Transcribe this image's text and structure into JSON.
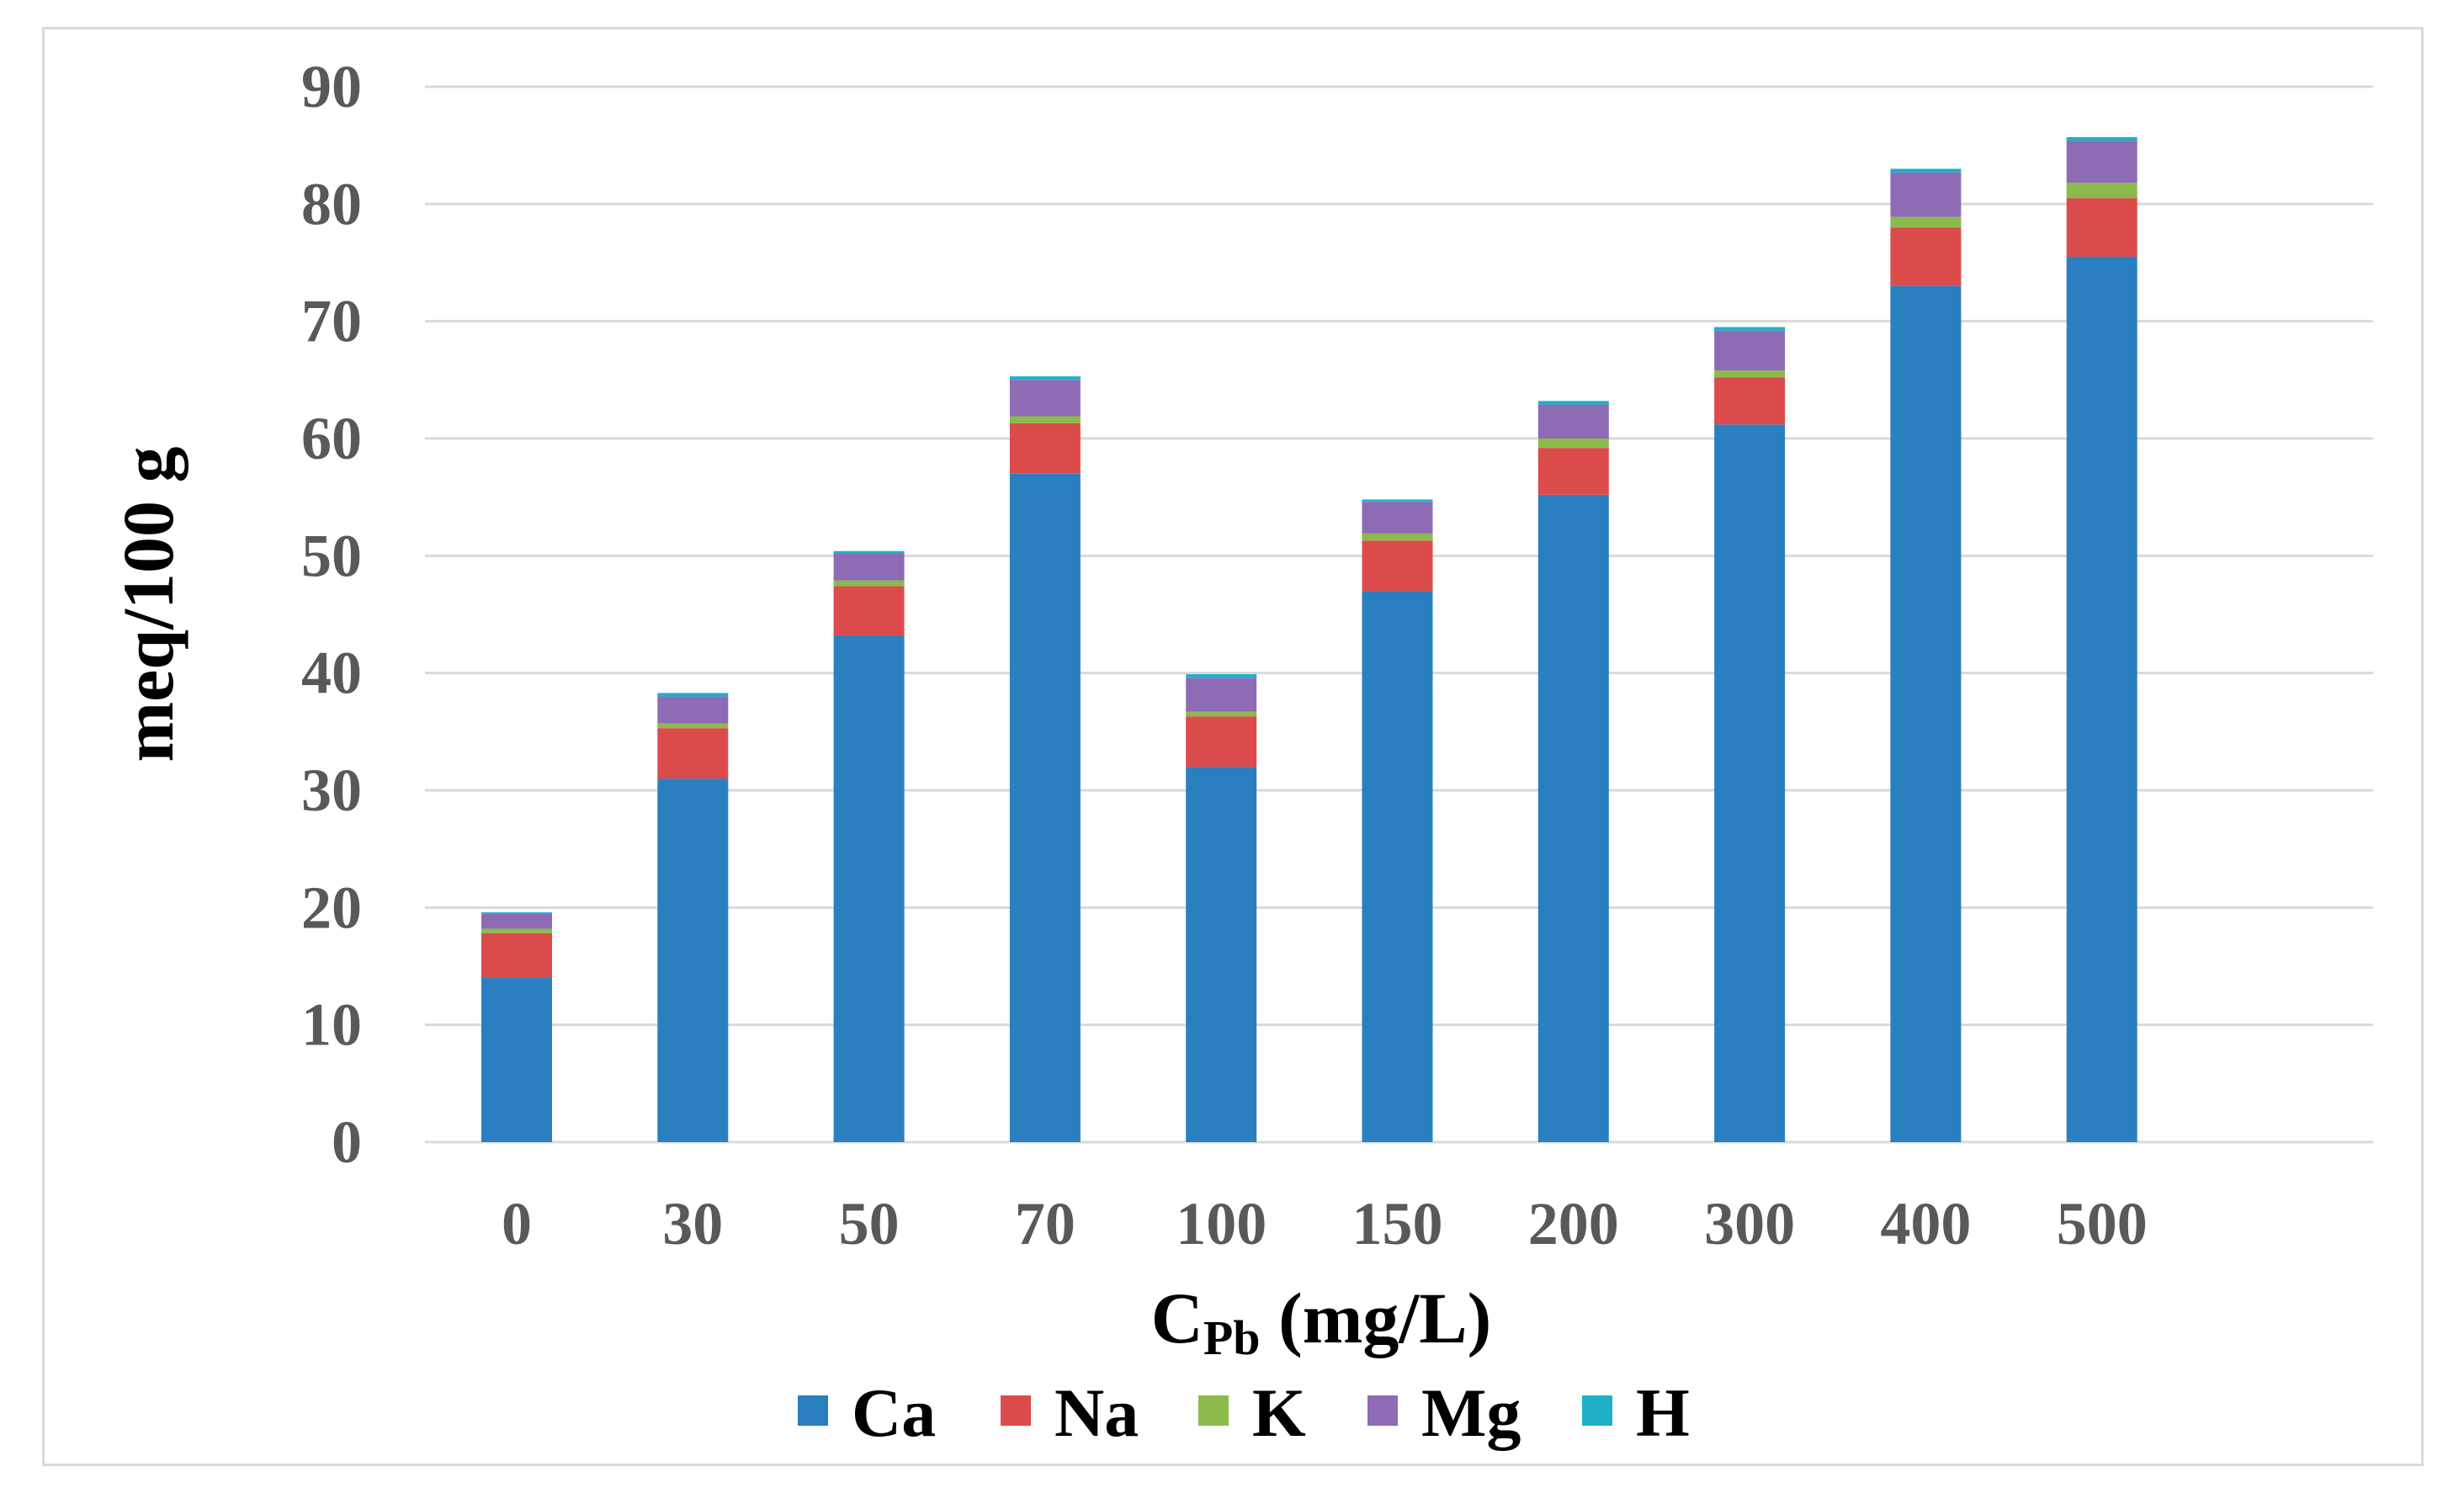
{
  "chart_data": {
    "type": "bar",
    "stacked": true,
    "title": "",
    "xlabel_main": "C",
    "xlabel_sub": "Pb",
    "xlabel_tail": " (mg/L)",
    "ylabel": "meq/100 g",
    "ylim": [
      0,
      90
    ],
    "yticks": [
      0,
      10,
      20,
      30,
      40,
      50,
      60,
      70,
      80,
      90
    ],
    "grid": true,
    "legend_position": "bottom",
    "categories": [
      "0",
      "30",
      "50",
      "70",
      "100",
      "150",
      "200",
      "300",
      "400",
      "500"
    ],
    "series": [
      {
        "name": "Ca",
        "color": "#2a7fc1",
        "values": [
          14.0,
          31.0,
          43.2,
          57.0,
          32.0,
          47.0,
          55.2,
          61.2,
          73.0,
          75.5
        ]
      },
      {
        "name": "Na",
        "color": "#dc4b4b",
        "values": [
          3.8,
          4.3,
          4.2,
          4.3,
          4.3,
          4.3,
          4.0,
          4.0,
          5.0,
          5.0
        ]
      },
      {
        "name": "K",
        "color": "#8cba4c",
        "values": [
          0.4,
          0.4,
          0.5,
          0.6,
          0.4,
          0.6,
          0.8,
          0.6,
          0.9,
          1.3
        ]
      },
      {
        "name": "Mg",
        "color": "#8e6bb5",
        "values": [
          1.3,
          2.3,
          2.3,
          3.1,
          2.9,
          2.7,
          2.9,
          3.4,
          3.8,
          3.6
        ]
      },
      {
        "name": "H",
        "color": "#1fb0c8",
        "values": [
          0.1,
          0.3,
          0.2,
          0.3,
          0.3,
          0.2,
          0.3,
          0.3,
          0.3,
          0.3
        ]
      }
    ]
  }
}
